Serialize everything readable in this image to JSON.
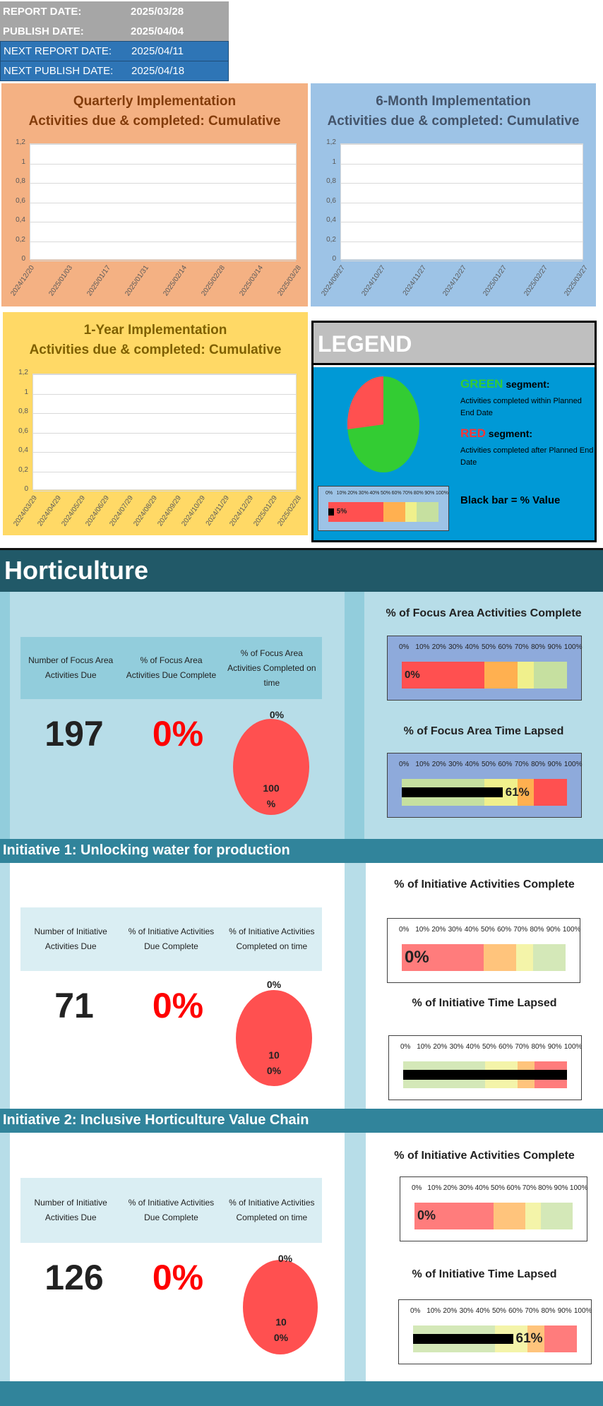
{
  "header": {
    "report_date_label": "REPORT DATE:",
    "report_date": "2025/03/28",
    "publish_date_label": "PUBLISH DATE:",
    "publish_date": "2025/04/04",
    "next_report_label": "NEXT REPORT DATE:",
    "next_report": "2025/04/11",
    "next_publish_label": "NEXT PUBLISH DATE:",
    "next_publish": "2025/04/18"
  },
  "charts": {
    "quarterly": {
      "title1": "Quarterly Implementation",
      "title2": "Activities due & completed:  Cumulative",
      "yticks": [
        "1,2",
        "1",
        "0,8",
        "0,6",
        "0,4",
        "0,2",
        "0"
      ],
      "xticks": [
        "2024/12/20",
        "2025/01/03",
        "2025/01/17",
        "2025/01/31",
        "2025/02/14",
        "2025/02/28",
        "2025/03/14",
        "2025/03/28"
      ]
    },
    "six_month": {
      "title1": "6-Month Implementation",
      "title2": "Activities due & completed:  Cumulative",
      "yticks": [
        "1,2",
        "1",
        "0,8",
        "0,6",
        "0,4",
        "0,2",
        "0"
      ],
      "xticks": [
        "2024/09/27",
        "2024/10/27",
        "2024/11/27",
        "2024/12/27",
        "2025/01/27",
        "2025/02/27",
        "2025/03/27"
      ]
    },
    "one_year": {
      "title1": "1-Year Implementation",
      "title2": "Activities due & completed:  Cumulative",
      "yticks": [
        "1,2",
        "1",
        "0,8",
        "0,6",
        "0,4",
        "0,2",
        "0"
      ],
      "xticks": [
        "2024/03/29",
        "2024/04/29",
        "2024/05/29",
        "2024/06/29",
        "2024/07/29",
        "2024/08/29",
        "2024/09/29",
        "2024/10/29",
        "2024/11/29",
        "2024/12/29",
        "2025/01/29",
        "2025/02/28"
      ]
    }
  },
  "legend": {
    "title": "LEGEND",
    "green_word": "GREEN",
    "green_rest": " segment:",
    "green_desc": "Activities completed within Planned End Date",
    "red_word": "RED",
    "red_rest": " segment:",
    "red_desc": "Activities completed after Planned End Date",
    "black_bar": "Black bar = % Value",
    "gauge_value": "5%"
  },
  "scale": [
    "0%",
    "10%",
    "20%",
    "30%",
    "40%",
    "50%",
    "60%",
    "70%",
    "80%",
    "90%",
    "100%"
  ],
  "focus": {
    "title": "Horticulture",
    "h1": "Number of Focus Area Activities Due",
    "h2": "% of Focus Area Activities Due Complete",
    "h3": "% of Focus Area Activities Completed on time",
    "due": "197",
    "complete": "0%",
    "pie_top": "0%",
    "pie_bottom1": "100",
    "pie_bottom2": "%",
    "g1_title": "% of Focus Area Activities Complete",
    "g1_value": "0%",
    "g2_title": "% of Focus Area Time Lapsed",
    "g2_value": "61%"
  },
  "init1": {
    "title": "Initiative 1:  Unlocking water for production",
    "h1": "Number of Initiative Activities Due",
    "h2": "% of Initiative Activities Due Complete",
    "h3": "% of Initiative Activities Completed on time",
    "due": "71",
    "complete": "0%",
    "pie_top": "0%",
    "pie_bottom1": "10",
    "pie_bottom2": "0%",
    "g1_title": "% of Initiative Activities Complete",
    "g1_value": "0%",
    "g2_title": "% of Initiative Time Lapsed"
  },
  "init2": {
    "title": "Initiative 2:  Inclusive Horticulture Value Chain",
    "h1": "Number of Initiative Activities Due",
    "h2": "% of Initiative Activities Due Complete",
    "h3": "% of Initiative Activities Completed on time",
    "due": "126",
    "complete": "0%",
    "pie_top": "0%",
    "pie_bottom1": "10",
    "pie_bottom2": "0%",
    "g1_title": "% of Initiative Activities Complete",
    "g1_value": "0%",
    "g2_title": "% of Initiative Time Lapsed",
    "g2_value": "61%"
  },
  "gauges": {
    "legend_level": 0.05,
    "focus_complete": 0,
    "focus_time": 0.61,
    "init1_complete": 0,
    "init1_time": 1.0,
    "init2_complete": 0,
    "init2_time": 0.61
  },
  "colors": {
    "red": "#ff5050",
    "orange": "#ffb050",
    "yellow": "#f0f08c",
    "green": "#c6e0a0",
    "chart_orange": "#f4b183",
    "chart_blue": "#9dc3e6",
    "chart_yellow": "#ffd966"
  }
}
